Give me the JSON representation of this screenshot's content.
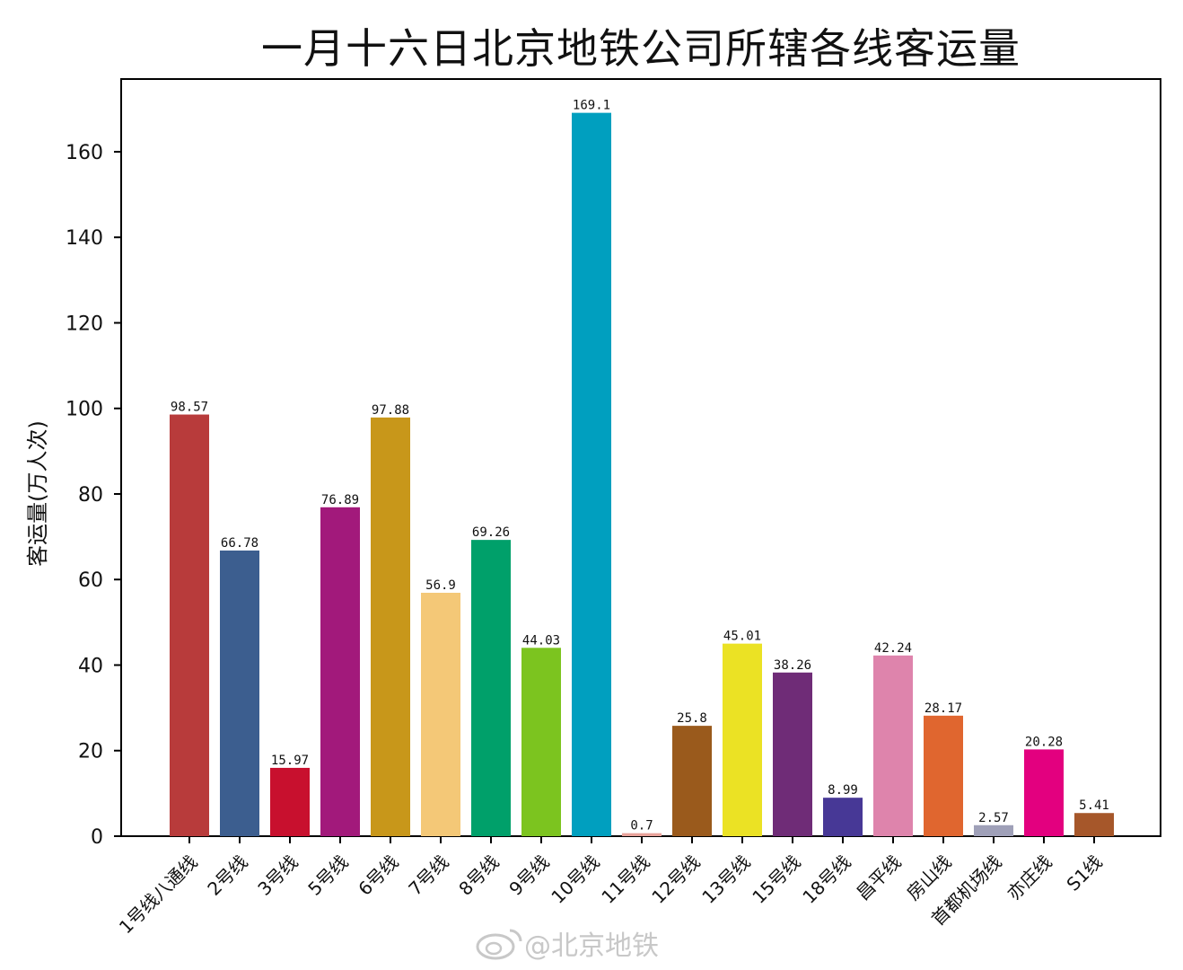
{
  "chart_data": {
    "type": "bar",
    "title": "一月十六日北京地铁公司所辖各线客运量",
    "xlabel": "",
    "ylabel": "客运量(万人次)",
    "ylim": [
      0,
      177
    ],
    "yticks": [
      0,
      20,
      40,
      60,
      80,
      100,
      120,
      140,
      160
    ],
    "grid": false,
    "categories": [
      "1号线八通线",
      "2号线",
      "3号线",
      "5号线",
      "6号线",
      "7号线",
      "8号线",
      "9号线",
      "10号线",
      "11号线",
      "12号线",
      "13号线",
      "15号线",
      "18号线",
      "昌平线",
      "房山线",
      "首都机场线",
      "亦庄线",
      "S1线"
    ],
    "values": [
      98.57,
      66.78,
      15.97,
      76.89,
      97.88,
      56.9,
      69.26,
      44.03,
      169.1,
      0.7,
      25.8,
      45.01,
      38.26,
      8.99,
      42.24,
      28.17,
      2.57,
      20.28,
      5.41
    ],
    "value_labels": [
      "98.57",
      "66.78",
      "15.97",
      "76.89",
      "97.88",
      "56.9",
      "69.26",
      "44.03",
      "169.1",
      "0.7",
      "25.8",
      "45.01",
      "38.26",
      "8.99",
      "42.24",
      "28.17",
      "2.57",
      "20.28",
      "5.41"
    ],
    "colors": [
      "#b83b3b",
      "#3c5e8f",
      "#c8102e",
      "#a2197b",
      "#c8971a",
      "#f4c877",
      "#00a06a",
      "#7cc41f",
      "#009fbf",
      "#e8a29a",
      "#9a5a1c",
      "#ebe224",
      "#6f2c77",
      "#473896",
      "#de84ac",
      "#e0662f",
      "#9fa0b8",
      "#e3007f",
      "#a6572a"
    ]
  },
  "watermark": {
    "text": "@北京地铁",
    "icon": "weibo-logo-icon"
  }
}
